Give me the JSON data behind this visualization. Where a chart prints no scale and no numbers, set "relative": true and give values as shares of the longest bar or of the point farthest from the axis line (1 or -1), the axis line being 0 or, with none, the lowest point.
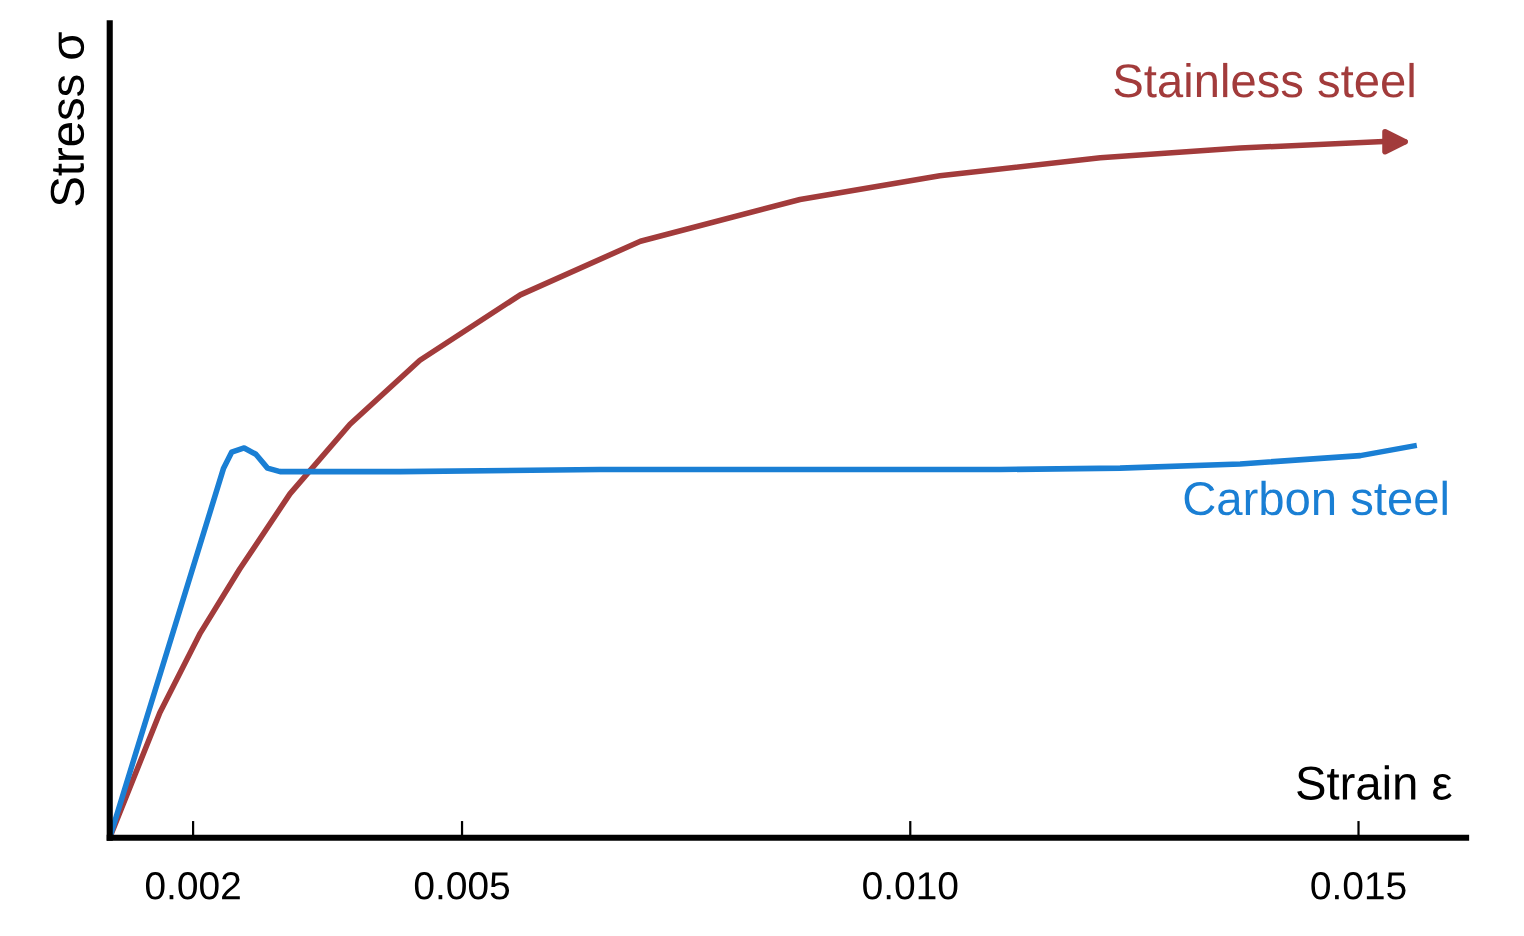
{
  "chart_data": {
    "type": "line",
    "relative": true,
    "xlabel": "Strain ε",
    "ylabel": "Stress σ",
    "tick_labels": "x",
    "grid": false,
    "legend": false,
    "xlim": [
      0.00107,
      0.0162
    ],
    "xticks": [
      0.002,
      0.005,
      {
        "value": 0.01,
        "label": "0.010"
      },
      0.015
    ],
    "series": [
      {
        "name": "Stainless steel",
        "color": "#a23b3b",
        "x": [
          0.00107,
          0.00163,
          0.00208,
          0.00252,
          0.00308,
          0.00375,
          0.00453,
          0.00565,
          0.00699,
          0.00877,
          0.01033,
          0.01212,
          0.01368,
          0.01525
        ],
        "values": [
          0,
          0.18,
          0.294,
          0.386,
          0.494,
          0.594,
          0.686,
          0.78,
          0.857,
          0.917,
          0.951,
          0.977,
          0.991,
          1
        ]
      },
      {
        "name": "Carbon steel",
        "color": "#1a7fd4",
        "x": [
          0.00107,
          0.00234,
          0.00243,
          0.00257,
          0.0027,
          0.00283,
          0.00297,
          0.00431,
          0.00654,
          0.00877,
          0.011,
          0.01234,
          0.01368,
          0.01502,
          0.01562
        ],
        "values": [
          0,
          0.531,
          0.554,
          0.56,
          0.551,
          0.531,
          0.526,
          0.526,
          0.529,
          0.529,
          0.529,
          0.531,
          0.537,
          0.549,
          0.563
        ]
      }
    ]
  }
}
